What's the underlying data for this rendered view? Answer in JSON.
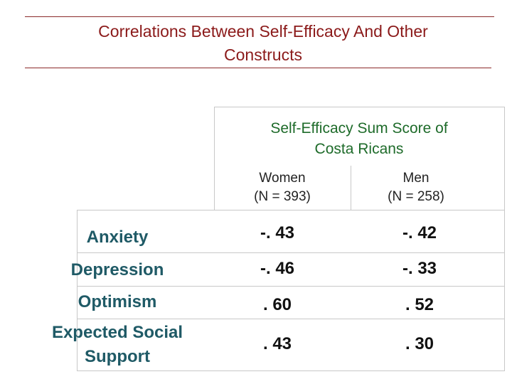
{
  "title": "Correlations Between Self-Efficacy And Other\nConstructs",
  "table": {
    "group_header": "Self-Efficacy Sum Score of\nCosta Ricans",
    "columns": [
      {
        "label": "Women\n(N = 393)"
      },
      {
        "label": "Men\n(N = 258)"
      }
    ],
    "rows": [
      {
        "label": "Anxiety",
        "women": "-. 43",
        "men": "-. 42"
      },
      {
        "label": "Depression",
        "women": "-. 46",
        "men": "-. 33"
      },
      {
        "label": "Optimism",
        "women": ". 60",
        "men": ". 52"
      },
      {
        "label": "Expected Social\nSupport",
        "women": ". 43",
        "men": ". 30"
      }
    ]
  },
  "colors": {
    "title": "#8b1a1a",
    "header": "#1e6b2a",
    "row_label": "#1f5a66",
    "grid": "#c8c8c8"
  }
}
